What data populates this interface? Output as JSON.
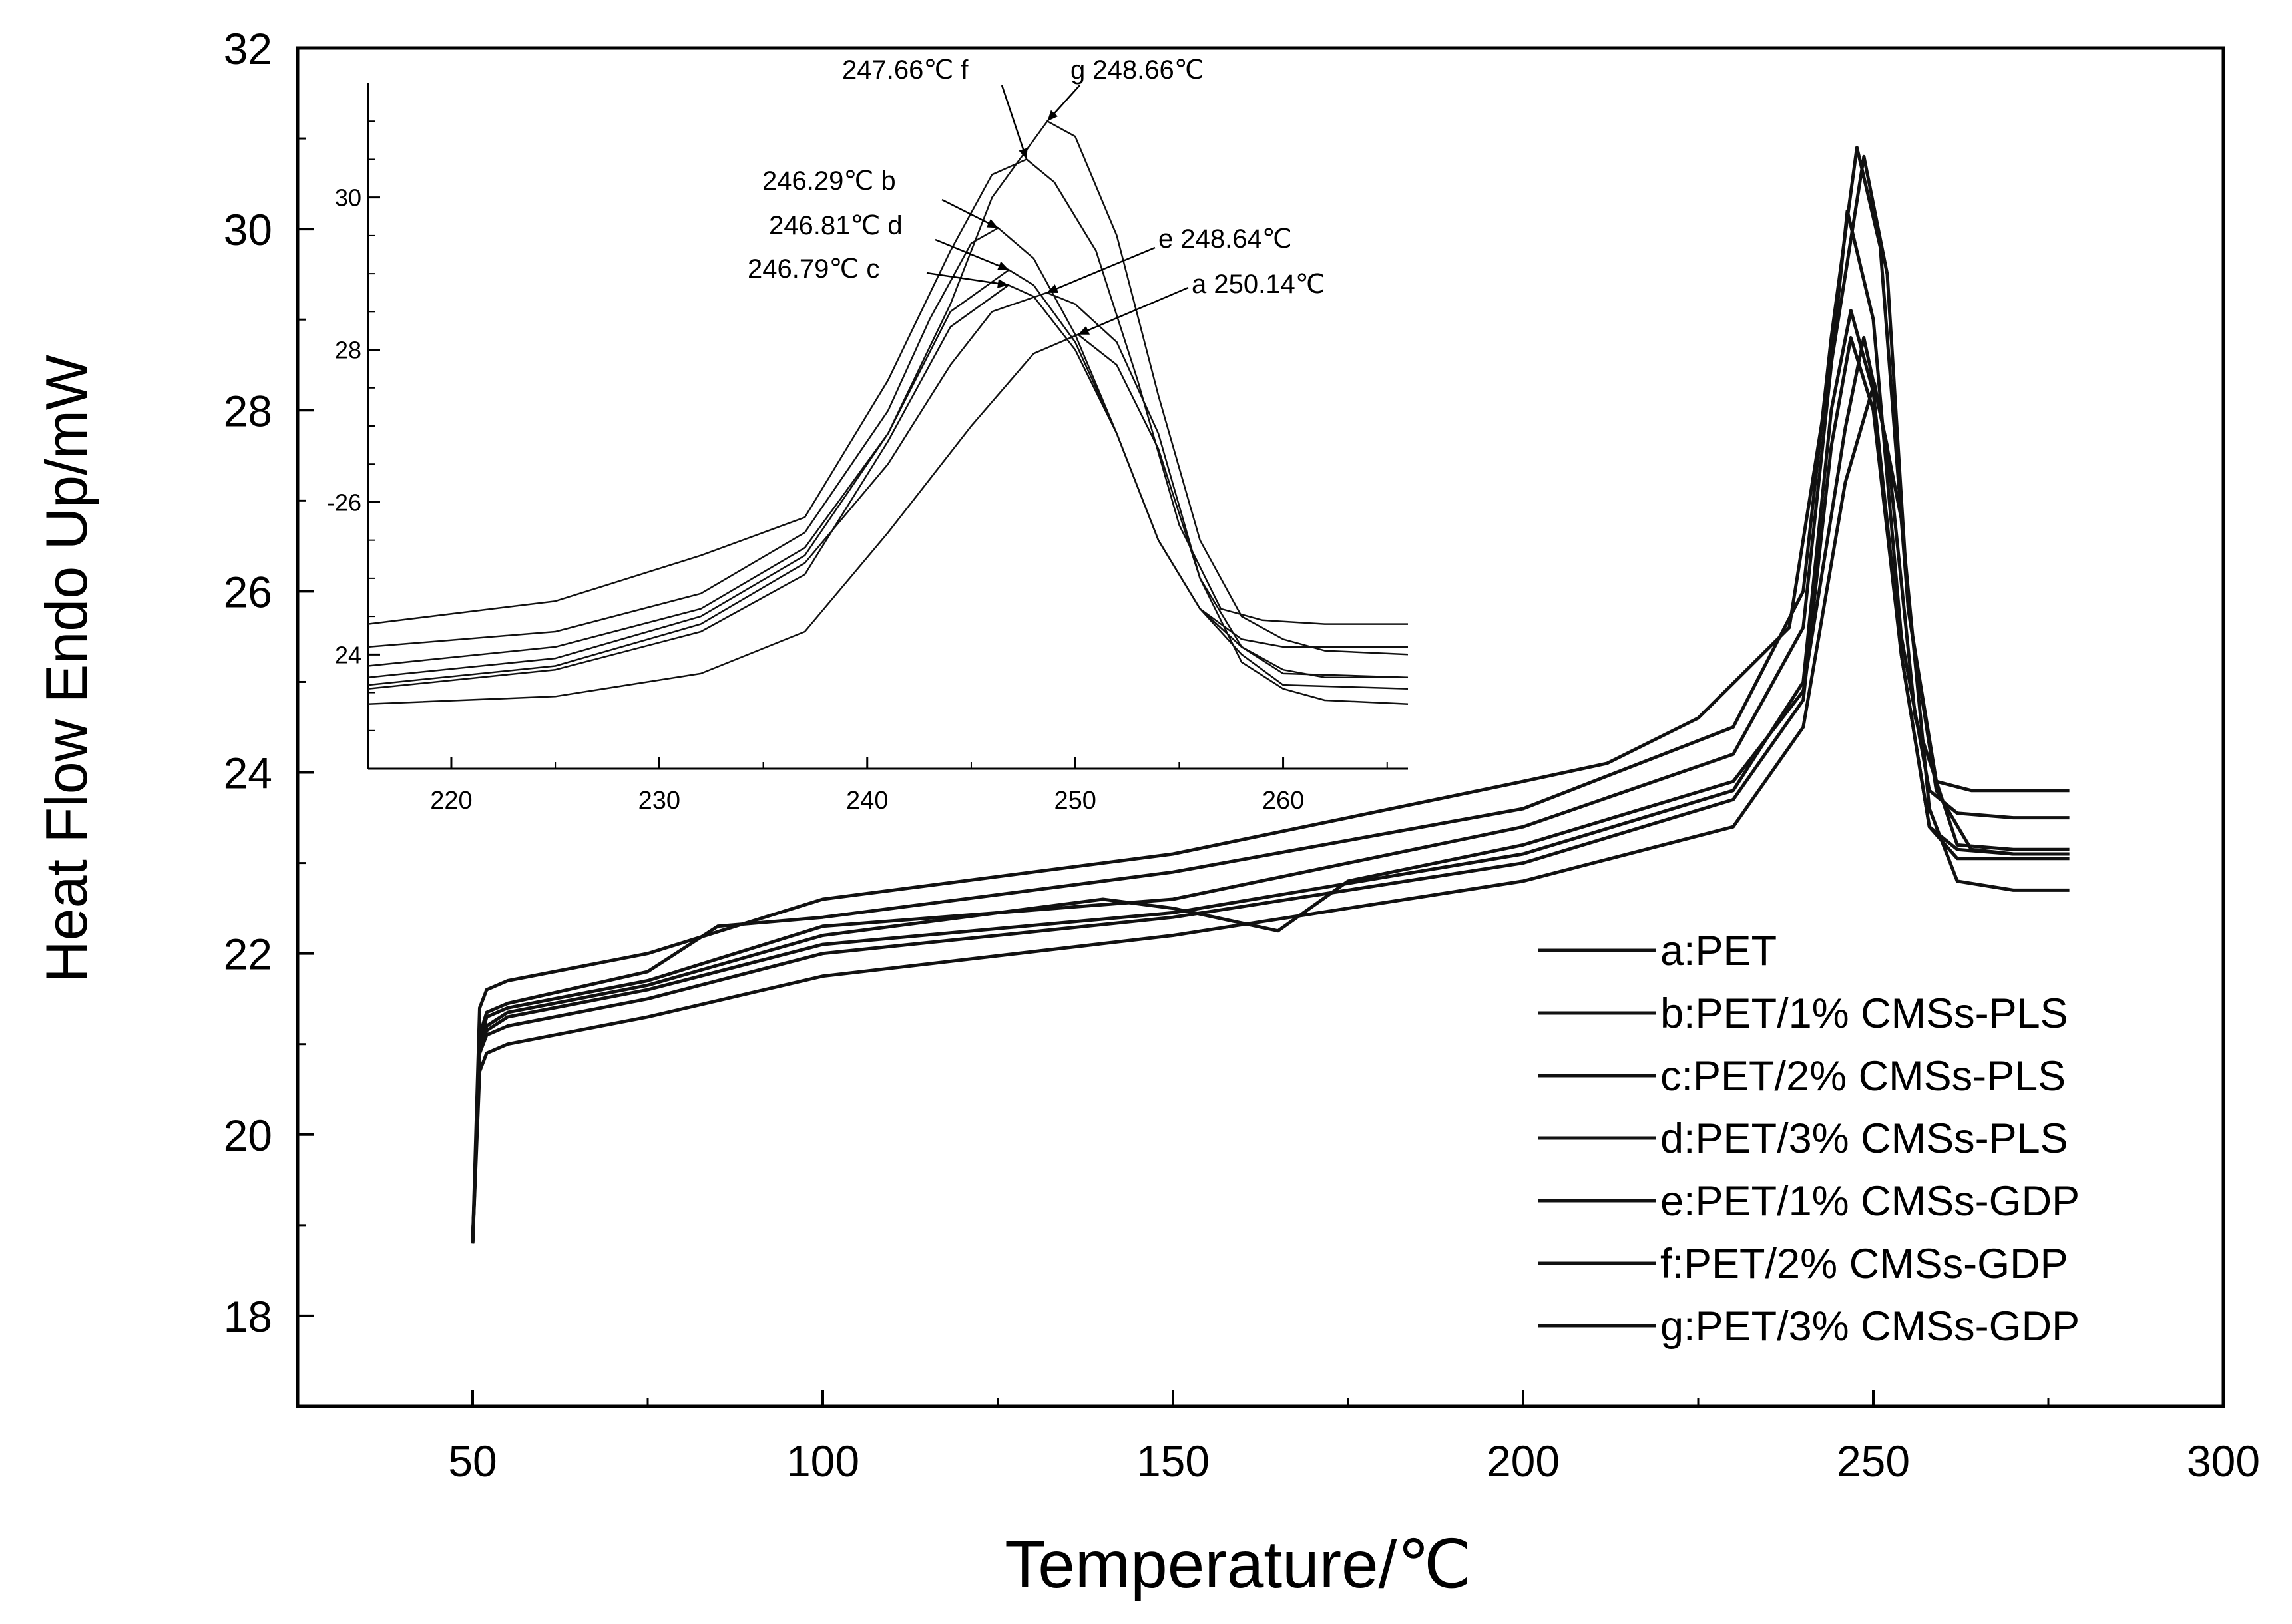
{
  "chart_data": [
    {
      "id": "main",
      "type": "line",
      "title": "",
      "xlabel": "Temperature/℃",
      "ylabel": "Heat Flow Endo Up/mW",
      "xlim": [
        25,
        300
      ],
      "ylim": [
        17,
        32
      ],
      "x_ticks": [
        50,
        100,
        150,
        200,
        250,
        300
      ],
      "y_ticks": [
        18,
        20,
        22,
        24,
        26,
        28,
        30,
        32
      ],
      "grid": false,
      "legend_position": "bottom-right",
      "legend": [
        "a:PET",
        "b:PET/1% CMSs-PLS",
        "c:PET/2% CMSs-PLS",
        "d:PET/3% CMSs-PLS",
        "e:PET/1% CMSs-GDP",
        "f:PET/2% CMSs-GDP",
        "g:PET/3% CMSs-GDP"
      ],
      "series": [
        {
          "name": "a",
          "x": [
            50,
            51,
            52,
            55,
            75,
            100,
            150,
            200,
            230,
            240,
            246,
            250.14,
            254,
            258,
            262,
            270,
            278
          ],
          "y": [
            18.8,
            20.7,
            20.9,
            21.0,
            21.3,
            21.75,
            22.2,
            22.8,
            23.4,
            24.5,
            27.2,
            28.3,
            26.8,
            23.6,
            22.8,
            22.7,
            22.7
          ]
        },
        {
          "name": "b",
          "x": [
            50,
            51,
            52,
            55,
            75,
            100,
            150,
            200,
            230,
            240,
            244,
            246.29,
            250,
            254,
            258,
            262,
            270,
            278
          ],
          "y": [
            18.8,
            21.0,
            21.3,
            21.4,
            21.7,
            22.3,
            22.6,
            23.4,
            24.2,
            25.6,
            28.5,
            30.2,
            29.0,
            25.5,
            23.8,
            23.55,
            23.5,
            23.5
          ]
        },
        {
          "name": "c",
          "x": [
            50,
            51,
            52,
            55,
            75,
            100,
            150,
            200,
            230,
            240,
            244,
            246.79,
            250,
            254,
            258,
            262,
            270,
            278
          ],
          "y": [
            18.8,
            20.9,
            21.1,
            21.2,
            21.5,
            22.0,
            22.4,
            23.0,
            23.7,
            24.8,
            27.6,
            28.8,
            28.0,
            25.3,
            23.4,
            23.05,
            23.05,
            23.05
          ]
        },
        {
          "name": "d",
          "x": [
            50,
            51,
            52,
            55,
            75,
            100,
            150,
            200,
            230,
            240,
            244,
            246.81,
            250,
            254,
            258,
            262,
            270,
            278
          ],
          "y": [
            18.8,
            20.9,
            21.15,
            21.3,
            21.6,
            22.1,
            22.45,
            23.1,
            23.8,
            25.0,
            28.0,
            29.1,
            28.2,
            25.3,
            23.4,
            23.15,
            23.1,
            23.1
          ]
        },
        {
          "name": "e",
          "x": [
            50,
            51,
            52,
            55,
            75,
            100,
            140,
            150,
            165,
            175,
            200,
            230,
            240,
            246,
            248.64,
            252,
            256,
            262,
            270,
            278
          ],
          "y": [
            18.8,
            20.95,
            21.2,
            21.35,
            21.65,
            22.2,
            22.6,
            22.5,
            22.25,
            22.8,
            23.2,
            23.9,
            24.9,
            27.8,
            28.8,
            27.6,
            24.6,
            23.2,
            23.15,
            23.15
          ]
        },
        {
          "name": "f",
          "x": [
            50,
            51,
            52,
            55,
            75,
            85,
            100,
            150,
            200,
            230,
            240,
            244,
            247.66,
            251,
            255,
            259,
            264,
            270,
            278
          ],
          "y": [
            18.8,
            21.1,
            21.35,
            21.45,
            21.8,
            22.3,
            22.4,
            22.9,
            23.6,
            24.5,
            26.0,
            28.8,
            30.9,
            29.8,
            25.8,
            23.9,
            23.8,
            23.8,
            23.8
          ]
        },
        {
          "name": "g",
          "x": [
            50,
            51,
            52,
            55,
            75,
            100,
            150,
            200,
            212,
            225,
            238,
            245,
            248.66,
            252,
            255,
            259,
            264,
            270,
            278
          ],
          "y": [
            18.8,
            21.4,
            21.6,
            21.7,
            22.0,
            22.6,
            23.1,
            23.9,
            24.1,
            24.6,
            25.6,
            29.0,
            30.8,
            29.5,
            25.8,
            23.8,
            23.15,
            23.1,
            23.1
          ]
        }
      ]
    },
    {
      "id": "inset",
      "type": "line",
      "title": "",
      "xlabel": "",
      "ylabel": "",
      "xlim": [
        216,
        266
      ],
      "ylim": [
        22.5,
        31.5
      ],
      "x_ticks": [
        220,
        230,
        240,
        250,
        260
      ],
      "y_ticks": [
        24,
        26,
        28,
        30
      ],
      "y_tick_labels": [
        "24",
        "-26",
        "28",
        "30"
      ],
      "annotations": [
        {
          "series": "f",
          "text": "247.66℃ f",
          "x": 247.66,
          "y": 30.5
        },
        {
          "series": "g",
          "text": "g  248.66℃",
          "x": 248.66,
          "y": 31.0
        },
        {
          "series": "b",
          "text": "246.29℃ b",
          "x": 246.29,
          "y": 29.6
        },
        {
          "series": "d",
          "text": "246.81℃ d",
          "x": 246.81,
          "y": 29.05
        },
        {
          "series": "e",
          "text": "e  248.64℃",
          "x": 248.64,
          "y": 28.75
        },
        {
          "series": "c",
          "text": "246.79℃ c",
          "x": 246.79,
          "y": 28.85
        },
        {
          "series": "a",
          "text": "a   250.14℃",
          "x": 250.14,
          "y": 28.2
        }
      ],
      "series": [
        {
          "name": "a",
          "x": [
            216,
            225,
            232,
            237,
            241,
            245,
            248,
            250.14,
            252,
            254,
            256,
            258,
            260,
            262,
            266
          ],
          "y": [
            23.35,
            23.45,
            23.75,
            24.3,
            25.6,
            27.0,
            27.95,
            28.2,
            27.8,
            26.7,
            25.0,
            23.9,
            23.55,
            23.4,
            23.35
          ]
        },
        {
          "name": "b",
          "x": [
            216,
            225,
            232,
            237,
            241,
            243,
            245,
            246.29,
            248,
            250,
            252,
            254,
            256,
            258,
            260,
            262,
            266
          ],
          "y": [
            24.1,
            24.3,
            24.8,
            25.6,
            27.2,
            28.4,
            29.4,
            29.6,
            29.2,
            28.2,
            26.9,
            25.5,
            24.6,
            24.2,
            24.1,
            24.1,
            24.1
          ]
        },
        {
          "name": "c",
          "x": [
            216,
            225,
            232,
            237,
            241,
            244,
            246.79,
            248,
            250,
            252,
            254,
            256,
            258,
            260,
            266
          ],
          "y": [
            23.55,
            23.8,
            24.3,
            25.05,
            26.8,
            28.3,
            28.85,
            28.7,
            28.0,
            26.9,
            25.5,
            24.6,
            24.0,
            23.6,
            23.55
          ]
        },
        {
          "name": "d",
          "x": [
            216,
            225,
            232,
            237,
            241,
            244,
            246.81,
            248,
            250,
            252,
            254,
            256,
            258,
            260,
            266
          ],
          "y": [
            23.7,
            23.95,
            24.5,
            25.3,
            26.9,
            28.5,
            29.05,
            28.85,
            28.1,
            26.9,
            25.5,
            24.6,
            24.1,
            23.75,
            23.7
          ]
        },
        {
          "name": "e",
          "x": [
            216,
            225,
            232,
            237,
            241,
            244,
            246,
            248.64,
            250,
            252,
            254,
            256,
            258,
            260,
            262,
            266
          ],
          "y": [
            23.6,
            23.85,
            24.4,
            25.2,
            26.5,
            27.8,
            28.5,
            28.75,
            28.6,
            28.1,
            26.9,
            25.0,
            24.1,
            23.8,
            23.7,
            23.7
          ]
        },
        {
          "name": "f",
          "x": [
            216,
            225,
            232,
            237,
            241,
            244,
            246,
            247.66,
            249,
            251,
            253,
            255,
            257,
            259,
            262,
            266
          ],
          "y": [
            24.4,
            24.7,
            25.3,
            25.8,
            27.6,
            29.3,
            30.3,
            30.5,
            30.2,
            29.3,
            27.6,
            25.7,
            24.6,
            24.45,
            24.4,
            24.4
          ]
        },
        {
          "name": "g",
          "x": [
            216,
            225,
            232,
            237,
            241,
            244,
            246,
            248.66,
            250,
            252,
            254,
            256,
            258,
            260,
            262,
            266
          ],
          "y": [
            23.85,
            24.1,
            24.6,
            25.4,
            26.9,
            28.6,
            30.0,
            31.0,
            30.8,
            29.5,
            27.4,
            25.5,
            24.5,
            24.2,
            24.05,
            24.0
          ]
        }
      ]
    }
  ]
}
